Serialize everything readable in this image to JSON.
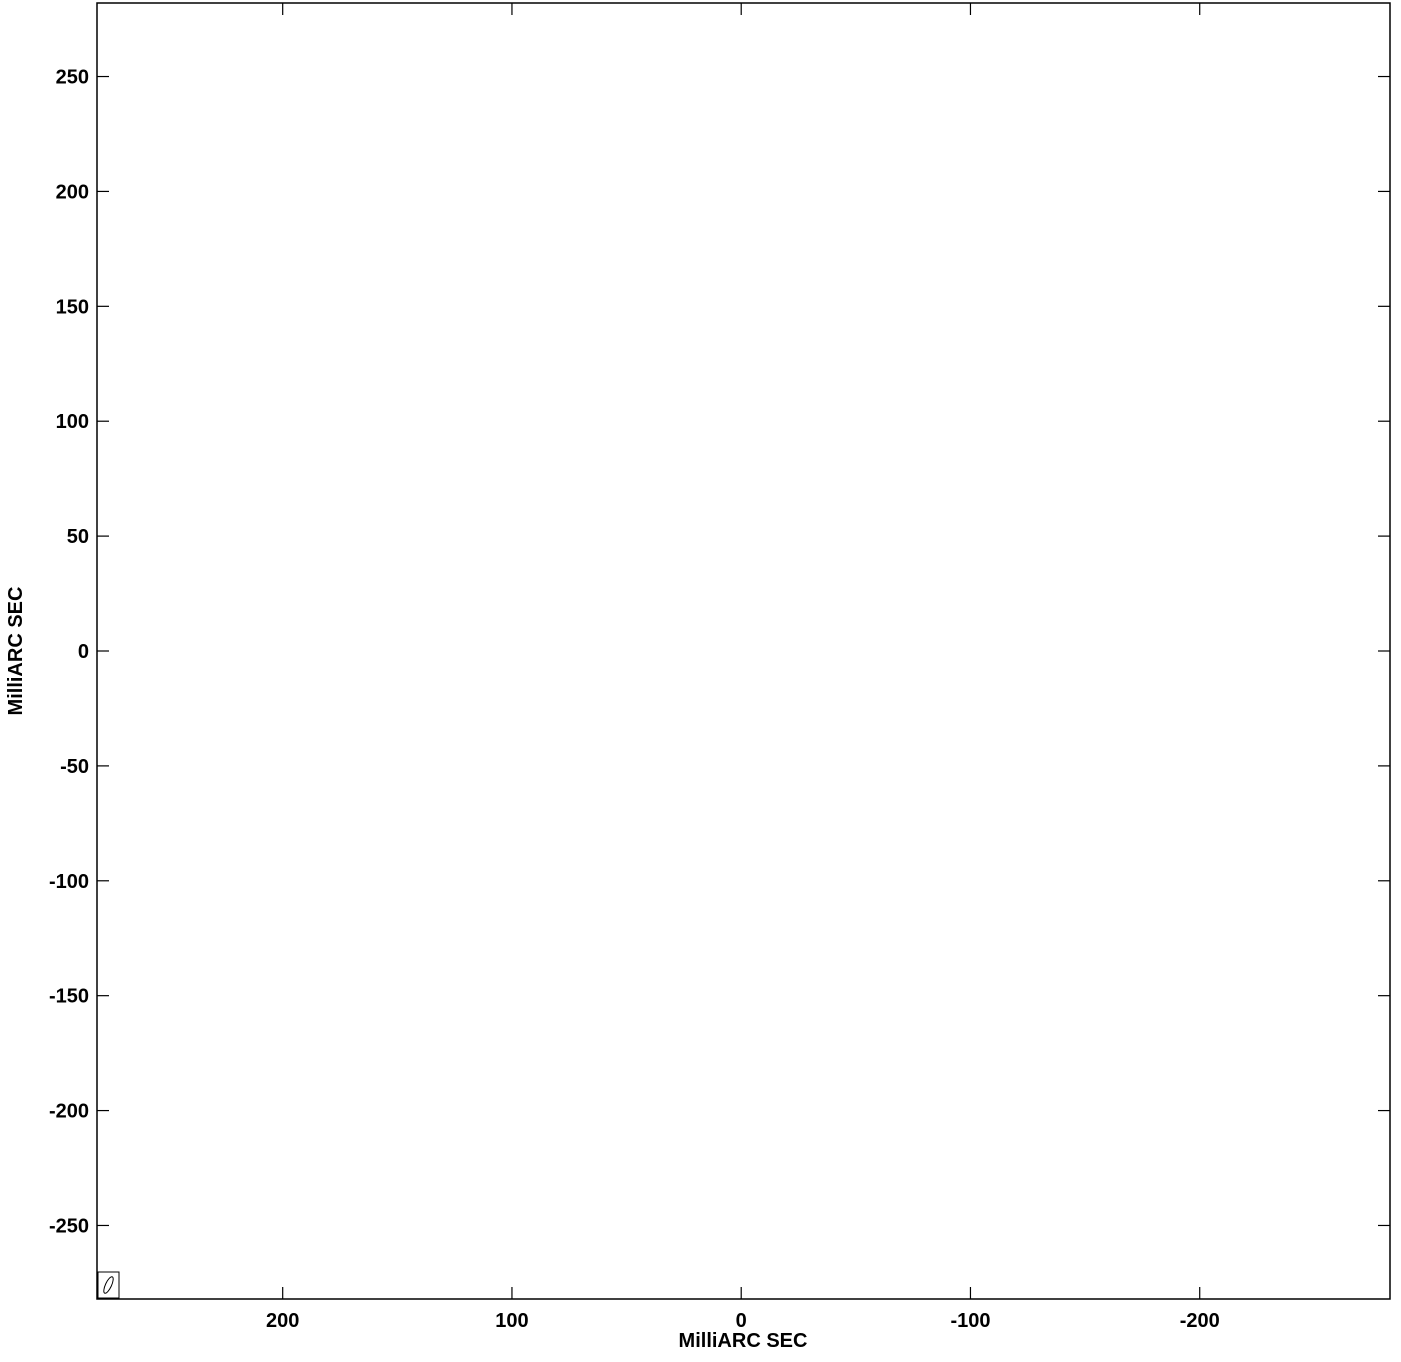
{
  "chart_data": {
    "type": "contour",
    "xlabel": "MilliARC SEC",
    "ylabel": "MilliARC SEC",
    "xlim": [
      281,
      -283
    ],
    "ylim": [
      -282,
      282
    ],
    "xticks": [
      200,
      100,
      0,
      -100,
      -200
    ],
    "yticks": [
      250,
      200,
      150,
      100,
      50,
      0,
      -50,
      -100,
      -150,
      -200,
      -250
    ]
  }
}
